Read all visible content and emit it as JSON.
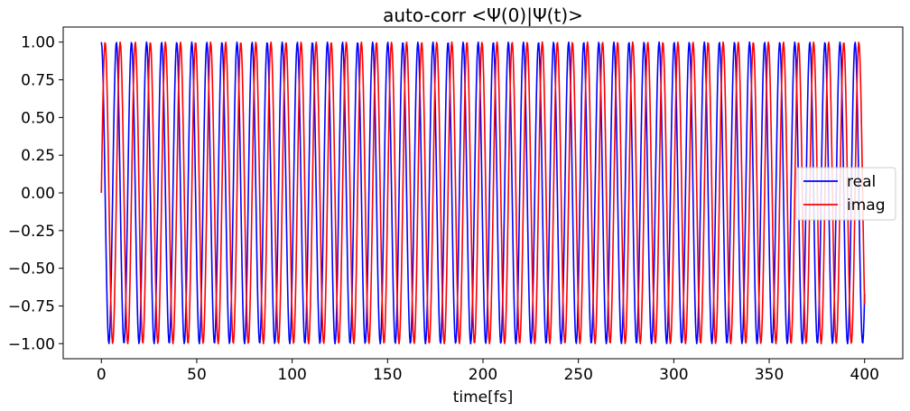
{
  "chart_data": {
    "type": "line",
    "title": "auto-corr <Ψ(0)|Ψ(t)>",
    "xlabel": "time[fs]",
    "ylabel": "",
    "xlim": [
      -20,
      420
    ],
    "ylim": [
      -1.1,
      1.1
    ],
    "xticks": [
      0,
      50,
      100,
      150,
      200,
      250,
      300,
      350,
      400
    ],
    "xtick_labels": [
      "0",
      "50",
      "100",
      "150",
      "200",
      "250",
      "300",
      "350",
      "400"
    ],
    "yticks": [
      1.0,
      0.75,
      0.5,
      0.25,
      0.0,
      -0.25,
      -0.5,
      -0.75,
      -1.0
    ],
    "ytick_labels": [
      "1.00",
      "0.75",
      "0.50",
      "0.25",
      "0.00",
      "−0.25",
      "−0.50",
      "−0.75",
      "−1.00"
    ],
    "grid": false,
    "legend_position": "center-right",
    "t_start": 0,
    "t_end": 400,
    "period_fs": 7.9,
    "series": [
      {
        "name": "real",
        "color": "#0000ff",
        "function": "cos"
      },
      {
        "name": "imag",
        "color": "#ff0000",
        "function": "sin"
      }
    ]
  }
}
